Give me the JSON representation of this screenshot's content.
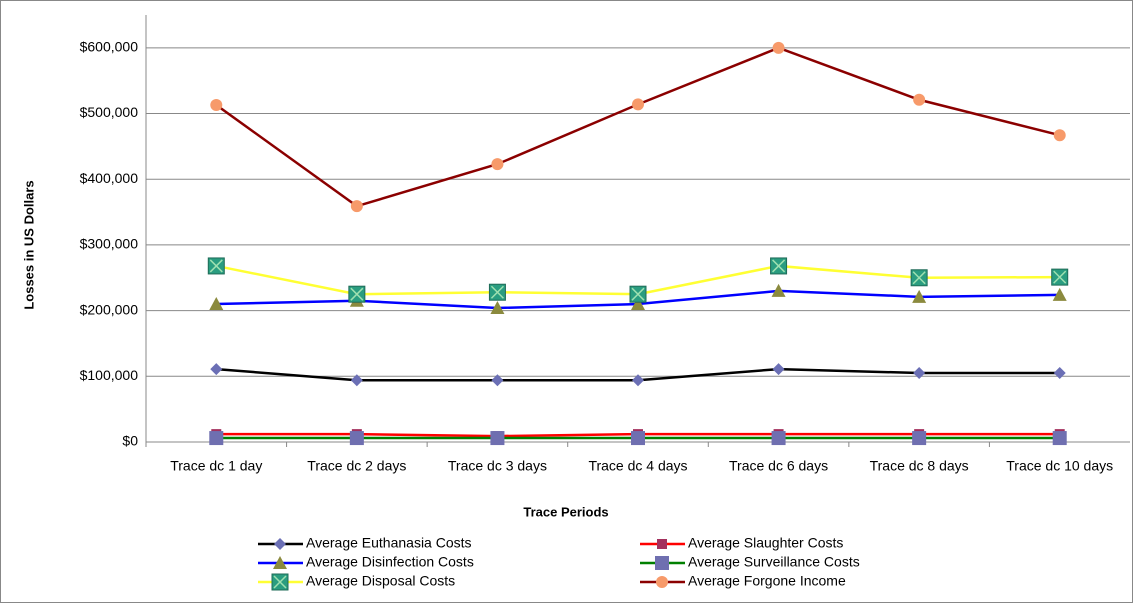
{
  "chart_data": {
    "type": "line",
    "y_label": "Losses in US Dollars",
    "x_label": "Trace Periods",
    "categories": [
      "Trace dc 1 day",
      "Trace dc 2 days",
      "Trace dc 3 days",
      "Trace dc 4 days",
      "Trace dc 6 days",
      "Trace dc 8 days",
      "Trace dc 10 days"
    ],
    "ylim": [
      0,
      650000
    ],
    "yticks": [
      {
        "value": 0,
        "label": "$0"
      },
      {
        "value": 100000,
        "label": "$100,000"
      },
      {
        "value": 200000,
        "label": "$200,000"
      },
      {
        "value": 300000,
        "label": "$300,000"
      },
      {
        "value": 400000,
        "label": "$400,000"
      },
      {
        "value": 500000,
        "label": "$500,000"
      },
      {
        "value": 600000,
        "label": "$600,000"
      }
    ],
    "grid": true,
    "legend": "bottom",
    "series": [
      {
        "name": "Average Euthanasia Costs",
        "color": "#000000",
        "marker": "diamond",
        "marker_color": "#6b6fb5",
        "values": [
          111000,
          94000,
          94000,
          94000,
          111000,
          105000,
          105000
        ]
      },
      {
        "name": "Average Slaughter Costs",
        "color": "#ff0000",
        "marker": "square",
        "marker_color": "#a3305d",
        "values": [
          12000,
          12000,
          9000,
          12000,
          12000,
          12000,
          12000
        ]
      },
      {
        "name": "Average Disinfection Costs",
        "color": "#0000ff",
        "marker": "triangle",
        "marker_color": "#8b8a3e",
        "values": [
          210000,
          215000,
          204000,
          210000,
          230000,
          221000,
          224000
        ]
      },
      {
        "name": "Average Surveillance Costs",
        "color": "#008000",
        "marker": "bigsquare",
        "marker_color": "#6f6fb0",
        "values": [
          6000,
          6000,
          6000,
          6000,
          6000,
          6000,
          6000
        ]
      },
      {
        "name": "Average Disposal Costs",
        "color": "#ffff33",
        "marker": "xsquare",
        "marker_color": "#2a9d80",
        "values": [
          268000,
          225000,
          228000,
          225000,
          268000,
          250000,
          251000
        ]
      },
      {
        "name": "Average Forgone Income",
        "color": "#8b0000",
        "marker": "circle",
        "marker_color": "#f79a6a",
        "values": [
          513000,
          359000,
          423000,
          514000,
          600000,
          521000,
          467000
        ]
      }
    ]
  }
}
